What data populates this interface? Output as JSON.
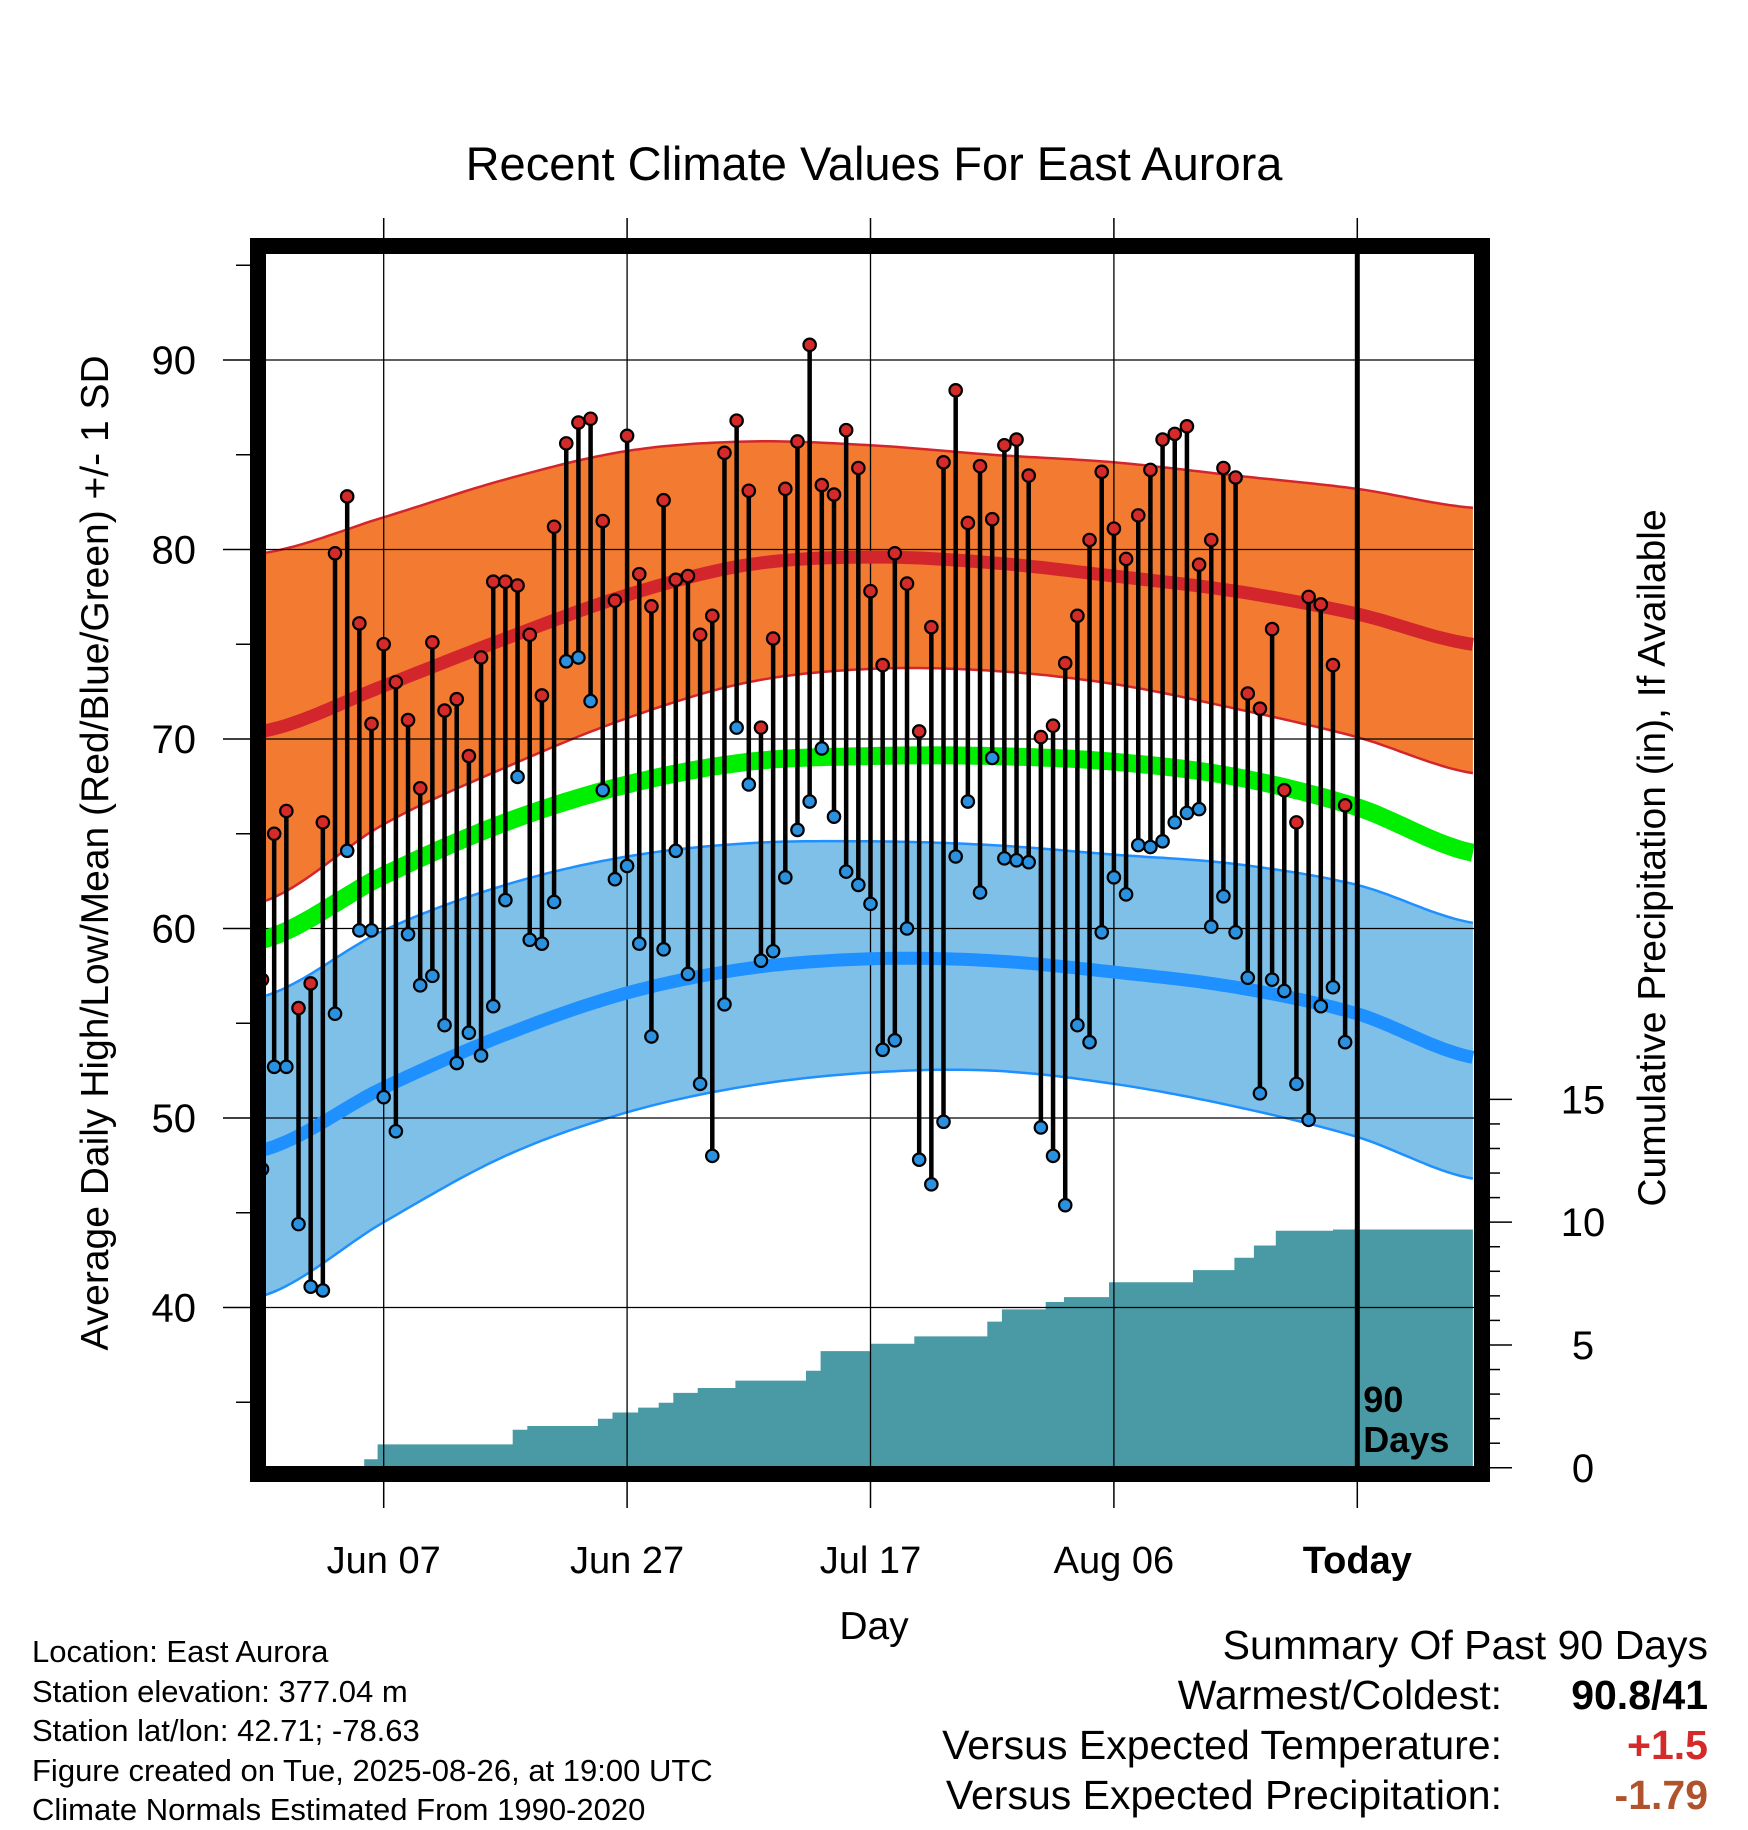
{
  "chart_data": {
    "type": "line",
    "title": "Recent Climate Values For East Aurora",
    "xlabel": "Day",
    "ylabel": "Average Daily High/Low/Mean (Red/Blue/Green) +/- 1 SD",
    "y2label": "Cumulative Precipitation (in), If Available",
    "ylim": [
      31,
      97
    ],
    "y2lim": [
      0,
      40
    ],
    "yticks": [
      "40",
      "50",
      "60",
      "70",
      "80",
      "90"
    ],
    "y2ticks": [
      "0",
      "5",
      "10",
      "15"
    ],
    "xtick_labels": [
      "Jun 07",
      "Jun 27",
      "Jul 17",
      "Aug 06",
      "Today"
    ],
    "xticks_day": [
      10,
      30,
      50,
      70,
      90
    ],
    "xlim": [
      0,
      99.5
    ],
    "grid": true,
    "marker_label": "90\nDays",
    "today_day": 90,
    "normal_day": [
      0,
      10,
      20,
      30,
      40,
      50,
      60,
      70,
      80,
      90,
      99.5
    ],
    "normal_high": [
      70.4,
      72.8,
      75.3,
      77.6,
      79.2,
      79.6,
      79.3,
      78.6,
      77.8,
      76.6,
      75.0
    ],
    "normal_high_upper": [
      79.8,
      81.7,
      83.7,
      85.2,
      85.7,
      85.5,
      85.0,
      84.6,
      83.9,
      83.2,
      82.2
    ],
    "normal_high_lower": [
      61.4,
      65.5,
      68.5,
      71.1,
      73.0,
      73.7,
      73.6,
      72.9,
      71.6,
      70.1,
      68.2
    ],
    "normal_mean": [
      59.4,
      62.8,
      65.6,
      67.6,
      68.8,
      69.1,
      69.1,
      68.8,
      68.0,
      66.4,
      64.0
    ],
    "normal_low": [
      48.3,
      51.6,
      54.4,
      56.6,
      57.9,
      58.4,
      58.3,
      57.7,
      56.9,
      55.5,
      53.2
    ],
    "normal_low_upper": [
      56.4,
      59.9,
      62.3,
      63.8,
      64.5,
      64.6,
      64.4,
      63.9,
      63.4,
      62.3,
      60.3
    ],
    "normal_low_lower": [
      40.6,
      44.5,
      48.0,
      50.3,
      51.7,
      52.4,
      52.5,
      51.8,
      50.6,
      49.0,
      46.8
    ],
    "daily_high": [
      57.3,
      65.0,
      66.2,
      55.8,
      57.1,
      65.6,
      79.8,
      82.8,
      76.1,
      70.8,
      75.0,
      73.0,
      71.0,
      67.4,
      75.1,
      71.5,
      72.1,
      69.1,
      74.3,
      78.3,
      78.3,
      78.1,
      75.5,
      72.3,
      81.2,
      85.6,
      86.7,
      86.9,
      81.5,
      77.3,
      86.0,
      78.7,
      77.0,
      82.6,
      78.4,
      78.6,
      75.5,
      76.5,
      85.1,
      86.8,
      83.1,
      70.6,
      75.3,
      83.2,
      85.7,
      90.8,
      83.4,
      82.9,
      86.3,
      84.3,
      77.8,
      73.9,
      79.8,
      78.2,
      70.4,
      75.9,
      84.6,
      88.4,
      81.4,
      84.4,
      81.6,
      85.5,
      85.8,
      83.9,
      70.1,
      70.7,
      74.0,
      76.5,
      80.5,
      84.1,
      81.1,
      79.5,
      81.8,
      84.2,
      85.8,
      86.1,
      86.5,
      79.2,
      80.5,
      84.3,
      83.8,
      72.4,
      71.6,
      75.8,
      67.3,
      65.6,
      77.5,
      77.1,
      73.9,
      66.5
    ],
    "daily_low": [
      47.3,
      52.7,
      52.7,
      44.4,
      41.1,
      40.9,
      55.5,
      64.1,
      59.9,
      59.9,
      51.1,
      49.3,
      59.7,
      57.0,
      57.5,
      54.9,
      52.9,
      54.5,
      53.3,
      55.9,
      61.5,
      68.0,
      59.4,
      59.2,
      61.4,
      74.1,
      74.3,
      72.0,
      67.3,
      62.6,
      63.3,
      59.2,
      54.3,
      58.9,
      64.1,
      57.6,
      51.8,
      48.0,
      56.0,
      70.6,
      67.6,
      58.3,
      58.8,
      62.7,
      65.2,
      66.7,
      69.5,
      65.9,
      63.0,
      62.3,
      61.3,
      53.6,
      54.1,
      60.0,
      47.8,
      46.5,
      49.8,
      63.8,
      66.7,
      61.9,
      69.0,
      63.7,
      63.6,
      63.5,
      49.5,
      48.0,
      45.4,
      54.9,
      54.0,
      59.8,
      62.7,
      61.8,
      64.4,
      64.3,
      64.6,
      65.6,
      66.1,
      66.3,
      60.1,
      61.7,
      59.8,
      57.4,
      51.3,
      57.3,
      56.7,
      51.8,
      49.9,
      55.9,
      56.9,
      54.0
    ],
    "cum_precip_day": [
      0,
      8.4,
      8.4,
      9.5,
      9.5,
      10.6,
      10.6,
      20.6,
      20.6,
      21.8,
      21.8,
      27.6,
      27.6,
      28.8,
      28.8,
      30.9,
      30.9,
      32.6,
      32.6,
      33.8,
      33.8,
      35.8,
      35.8,
      38.9,
      38.9,
      44.7,
      44.7,
      45.9,
      45.9,
      50.0,
      50.0,
      53.6,
      53.6,
      59.6,
      59.6,
      60.8,
      60.8,
      64.4,
      64.4,
      65.9,
      65.9,
      69.6,
      69.6,
      76.5,
      76.5,
      79.9,
      79.9,
      81.5,
      81.5,
      83.3,
      83.3,
      86.4,
      86.4,
      88.0,
      88.0,
      99.5
    ],
    "cum_precip_in": [
      0,
      0,
      0.4,
      0.4,
      1.0,
      1.0,
      1.0,
      1.0,
      1.6,
      1.6,
      1.75,
      1.75,
      2.05,
      2.05,
      2.3,
      2.3,
      2.5,
      2.5,
      2.7,
      2.7,
      3.1,
      3.1,
      3.3,
      3.3,
      3.6,
      3.6,
      4.0,
      4.0,
      4.8,
      4.8,
      5.1,
      5.1,
      5.4,
      5.4,
      6.0,
      6.0,
      6.5,
      6.5,
      6.8,
      6.8,
      7.0,
      7.0,
      7.6,
      7.6,
      8.1,
      8.1,
      8.6,
      8.6,
      9.1,
      9.1,
      9.7,
      9.7,
      9.7,
      9.7,
      9.75,
      9.75
    ]
  },
  "colors": {
    "high_band": "#f27b31",
    "high_line": "#d3262c",
    "mean_line": "#00ee00",
    "low_band": "#7fc0e8",
    "low_line": "#1e90ff",
    "precip_fill": "#4a9aa5",
    "high_dot": "#d42a2a",
    "low_dot": "#2a90e0"
  },
  "footer": {
    "location": "Location: East Aurora",
    "elevation": "Station elevation: 377.04 m",
    "latlon": "Station lat/lon: 42.71; -78.63",
    "created": "Figure created on Tue, 2025-08-26, at 19:00 UTC",
    "normals": "Climate Normals Estimated From 1990-2020"
  },
  "summary": {
    "title": "Summary Of Past 90 Days",
    "warmest_label": "Warmest/Coldest:",
    "warmest_value": "90.8/41",
    "temp_label": "Versus Expected Temperature:",
    "temp_value": "+1.5",
    "temp_color": "#d42a2a",
    "precip_label": "Versus Expected Precipitation:",
    "precip_value": "-1.79",
    "precip_color": "#b0532d"
  }
}
